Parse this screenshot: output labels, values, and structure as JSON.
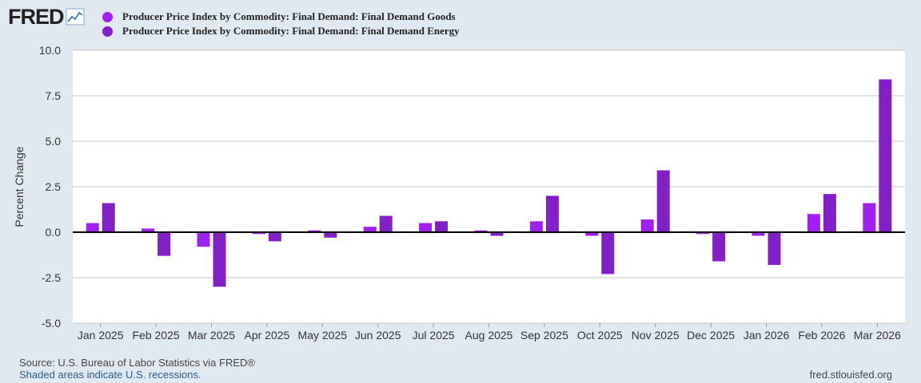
{
  "brand": "FRED",
  "colors": {
    "goods": "#a020f0",
    "energy": "#8220c8",
    "background": "#e1e9f0",
    "plot": "#ffffff",
    "grid": "#c8c8c8"
  },
  "chart_data": {
    "type": "bar",
    "title": "",
    "xlabel": "",
    "ylabel": "Percent Change",
    "ylim": [
      -5.0,
      10.0
    ],
    "yticks": [
      "10.0",
      "7.5",
      "5.0",
      "2.5",
      "0.0",
      "-2.5",
      "-5.0"
    ],
    "ytick_values": [
      10.0,
      7.5,
      5.0,
      2.5,
      0.0,
      -2.5,
      -5.0
    ],
    "grid": true,
    "legend_position": "top-left",
    "categories": [
      "Jan 2025",
      "Feb 2025",
      "Mar 2025",
      "Apr 2025",
      "May 2025",
      "Jun 2025",
      "Jul 2025",
      "Aug 2025",
      "Sep 2025",
      "Oct 2025",
      "Nov 2025",
      "Dec 2025",
      "Jan 2026",
      "Feb 2026",
      "Mar 2026"
    ],
    "series": [
      {
        "name": "Producer Price Index by Commodity: Final Demand: Final Demand Goods",
        "values": [
          0.5,
          0.2,
          -0.8,
          -0.1,
          0.1,
          0.3,
          0.5,
          0.1,
          0.6,
          -0.2,
          0.7,
          -0.1,
          -0.2,
          1.0,
          1.6
        ]
      },
      {
        "name": "Producer Price Index by Commodity: Final Demand: Final Demand Energy",
        "values": [
          1.6,
          -1.3,
          -3.0,
          -0.5,
          -0.3,
          0.9,
          0.6,
          -0.2,
          2.0,
          -2.3,
          3.4,
          -1.6,
          -1.8,
          2.1,
          8.4
        ]
      }
    ]
  },
  "footer": {
    "source": "Source: U.S. Bureau of Labor Statistics via FRED®",
    "recessions": "Shaded areas indicate U.S. recessions.",
    "url": "fred.stlouisfed.org"
  }
}
